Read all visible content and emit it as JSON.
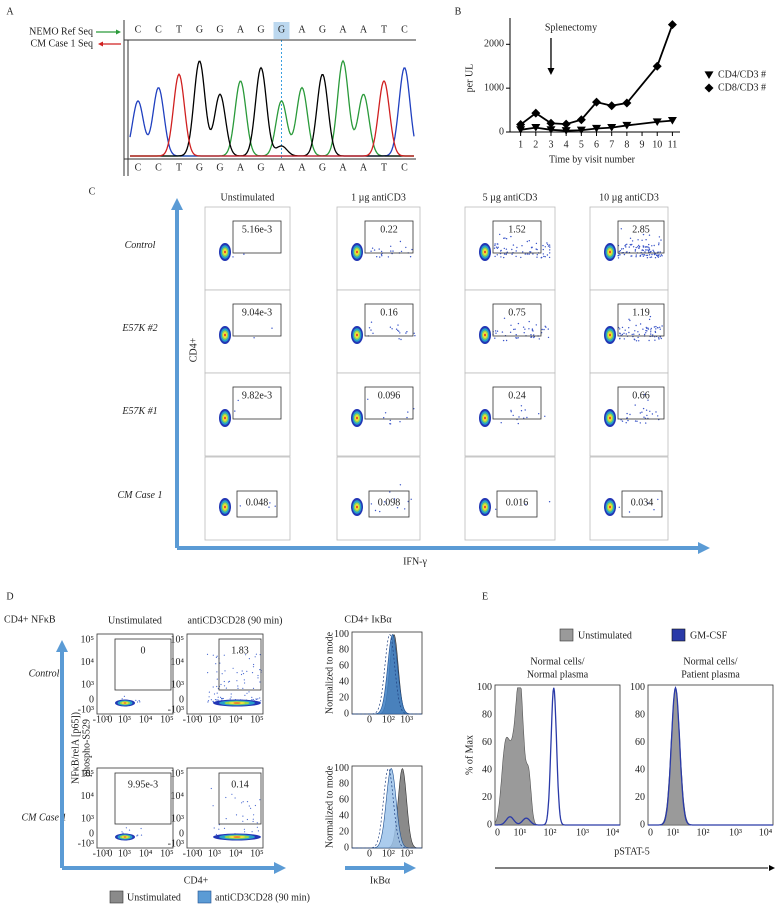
{
  "panel_a": {
    "label": "A",
    "ref_label": "NEMO Ref Seq",
    "case_label": "CM Case 1 Seq",
    "ref_sequence": [
      "C",
      "C",
      "T",
      "G",
      "G",
      "A",
      "G",
      "G",
      "A",
      "G",
      "A",
      "A",
      "T",
      "C"
    ],
    "case_sequence": [
      "C",
      "C",
      "T",
      "G",
      "G",
      "A",
      "G",
      "A",
      "A",
      "G",
      "A",
      "A",
      "T",
      "C"
    ]
  },
  "chart_data": {
    "type": "line",
    "panel_label": "B",
    "annotation": "Splenectomy",
    "annotation_x": 3,
    "x": [
      1,
      2,
      3,
      4,
      5,
      6,
      7,
      8,
      10,
      11
    ],
    "series": [
      {
        "name": "CD4/CD3 #",
        "color": "#000000",
        "marker": "triangle-down",
        "values": [
          50,
          100,
          50,
          30,
          40,
          80,
          100,
          150,
          230,
          260
        ]
      },
      {
        "name": "CD8/CD3 #",
        "color": "#000000",
        "marker": "diamond",
        "values": [
          170,
          430,
          200,
          180,
          280,
          680,
          600,
          660,
          1500,
          2450
        ]
      }
    ],
    "xlim": [
      0.3,
      11.5
    ],
    "xticks": [
      1,
      2,
      3,
      4,
      5,
      6,
      7,
      8,
      9,
      10,
      11
    ],
    "ylim": [
      0,
      2600
    ],
    "yticks": [
      0,
      1000,
      2000
    ],
    "xlabel": "Time by visit number",
    "ylabel": "per UL",
    "legend": "right"
  },
  "panel_c": {
    "label": "C",
    "columns": [
      "Unstimulated",
      "1 µg antiCD3",
      "5 µg antiCD3",
      "10 µg antiCD3"
    ],
    "rows": [
      {
        "name": "Control",
        "values": [
          "5.16e-3",
          "0.22",
          "1.52",
          "2.85"
        ]
      },
      {
        "name": "E57K #2",
        "values": [
          "9.04e-3",
          "0.16",
          "0.75",
          "1.19"
        ]
      },
      {
        "name": "E57K #1",
        "values": [
          "9.82e-3",
          "0.096",
          "0.24",
          "0.66"
        ]
      },
      {
        "name": "CM Case 1",
        "values": [
          "0.048",
          "0.098",
          "0.016",
          "0.034"
        ]
      }
    ],
    "y_axis_label": "CD4+",
    "x_axis_label": "IFN-γ"
  },
  "panel_d": {
    "label": "D",
    "flow_title": "CD4+ NFκB",
    "histogram_title": "CD4+ IκBα",
    "columns": [
      "Unstimulated",
      "antiCD3CD28 (90 min)"
    ],
    "rows": [
      {
        "name": "Control",
        "values": [
          "0",
          "1.83"
        ]
      },
      {
        "name": "CM Case 1",
        "values": [
          "9.95e-3",
          "0.14"
        ]
      }
    ],
    "y_axis_label": [
      "NFκB/relA [p65])",
      "phospho-S529"
    ],
    "x_axis_label": "CD4+",
    "flow_ticks": [
      "-10³",
      "0",
      "10³",
      "10⁴",
      "10⁵"
    ],
    "histogram_y_label": "Normalized to mode",
    "histogram_yticks": [
      0,
      20,
      40,
      60,
      80,
      100
    ],
    "histogram_xticks": [
      "0",
      "10²",
      "10³"
    ],
    "histogram_x_label": "IκBα",
    "legend": [
      "Unstimulated",
      "antiCD3CD28 (90 min)"
    ]
  },
  "panel_e": {
    "label": "E",
    "legend": [
      "Unstimulated",
      "GM-CSF"
    ],
    "plots": [
      [
        "Normal cells/",
        "Normal plasma"
      ],
      [
        "Normal cells/",
        "Patient plasma"
      ]
    ],
    "y_axis_label": "% of Max",
    "yticks": [
      0,
      20,
      40,
      60,
      80,
      100
    ],
    "xticks": [
      "0",
      "10¹",
      "10²",
      "10³",
      "10⁴"
    ],
    "x_axis_label": "pSTAT-5"
  }
}
